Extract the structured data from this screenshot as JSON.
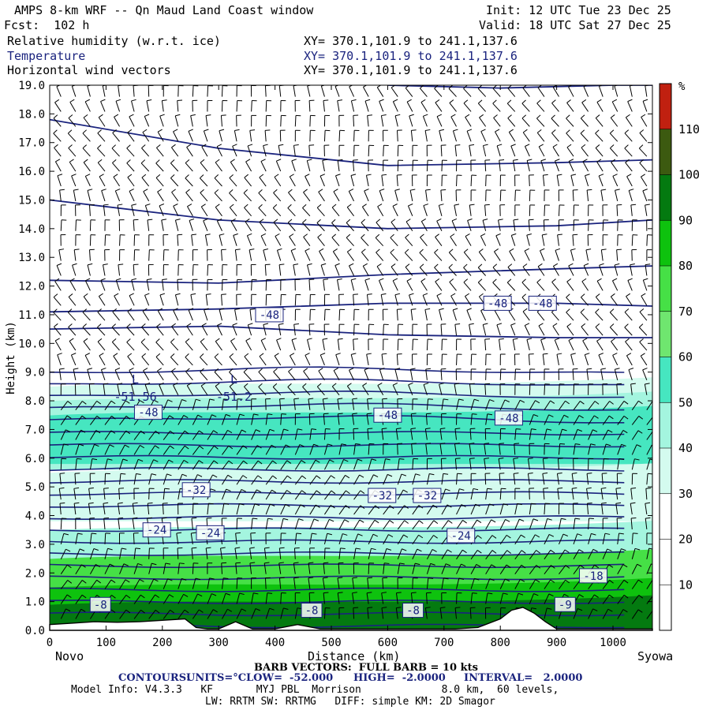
{
  "header": {
    "title": "AMPS 8-km WRF -- Qn Maud Land Coast window",
    "init": "Init: 12 UTC Tue 23 Dec 25",
    "fcst": "Fcst:  102 h",
    "valid": "Valid: 18 UTC Sat 27 Dec 25",
    "fields": [
      {
        "name": "Relative humidity (w.r.t. ice)",
        "xy": "XY= 370.1,101.9 to 241.1,137.6",
        "color": "#000000"
      },
      {
        "name": "Temperature",
        "xy": "XY= 370.1,101.9 to 241.1,137.6",
        "color": "#1a237e"
      },
      {
        "name": "Horizontal wind vectors",
        "xy": "XY= 370.1,101.9 to 241.1,137.6",
        "color": "#000000"
      }
    ]
  },
  "chart_data": {
    "type": "cross-section",
    "xlabel": "Distance (km)",
    "ylabel": "Height (km)",
    "xlim": [
      0,
      1070
    ],
    "ylim": [
      0,
      19
    ],
    "x_ticks": [
      0,
      100,
      200,
      300,
      400,
      500,
      600,
      700,
      800,
      900,
      1000
    ],
    "x_tick_labels": [
      "0",
      "100",
      "200",
      "300",
      "400",
      "500",
      "600",
      "700",
      "800",
      "900",
      "1000"
    ],
    "y_ticks": [
      0,
      1,
      2,
      3,
      4,
      5,
      6,
      7,
      8,
      9,
      10,
      11,
      12,
      13,
      14,
      15,
      16,
      17,
      18,
      19
    ],
    "y_tick_labels": [
      "0.0",
      "1.0",
      "2.0",
      "3.0",
      "4.0",
      "5.0",
      "6.0",
      "7.0",
      "8.0",
      "9.0",
      "10.0",
      "11.0",
      "12.0",
      "13.0",
      "14.0",
      "15.0",
      "16.0",
      "17.0",
      "18.0",
      "19.0"
    ],
    "endpoints": {
      "left": "Novo",
      "right": "Syowa"
    },
    "colorbar": {
      "unit": "%",
      "labels": [
        "10",
        "20",
        "30",
        "40",
        "50",
        "60",
        "70",
        "80",
        "90",
        "100",
        "110"
      ],
      "label_values": [
        10,
        20,
        30,
        40,
        50,
        60,
        70,
        80,
        90,
        100,
        110
      ],
      "range": [
        0,
        120
      ],
      "bins": [
        {
          "from": 0,
          "to": 30,
          "color": "#ffffff"
        },
        {
          "from": 30,
          "to": 40,
          "color": "#d4fbef"
        },
        {
          "from": 40,
          "to": 50,
          "color": "#a4f5df"
        },
        {
          "from": 50,
          "to": 60,
          "color": "#46e6c0"
        },
        {
          "from": 60,
          "to": 70,
          "color": "#6fe66f"
        },
        {
          "from": 70,
          "to": 80,
          "color": "#46e046"
        },
        {
          "from": 80,
          "to": 90,
          "color": "#0ec20e"
        },
        {
          "from": 90,
          "to": 100,
          "color": "#047a10"
        },
        {
          "from": 100,
          "to": 110,
          "color": "#3c5a10"
        },
        {
          "from": 110,
          "to": 120,
          "color": "#c02010"
        }
      ]
    },
    "rh_layers": [
      {
        "ytop": 8.6,
        "ybot": 7.0,
        "rh": 35
      },
      {
        "ytop": 8.1,
        "ybot": 5.6,
        "rh": 45
      },
      {
        "ytop": 7.6,
        "ybot": 5.8,
        "rh": 55
      },
      {
        "ytop": 5.6,
        "ybot": 3.8,
        "rh": 35
      },
      {
        "ytop": 3.6,
        "ybot": 2.0,
        "rh": 45
      },
      {
        "ytop": 2.6,
        "ybot": 0.0,
        "rh": 75
      },
      {
        "ytop": 1.6,
        "ybot": 0.0,
        "rh": 85
      },
      {
        "ytop": 1.0,
        "ybot": 0.0,
        "rh": 95
      }
    ],
    "temperature": {
      "contour_unit": "°C",
      "low": -52.0,
      "high": -2.0,
      "interval": 2.0,
      "lowest_contour_height_km": 0.15,
      "spacing_below_9km": 0.42,
      "upper_contours_km": [
        {
          "x": [
            0,
            300,
            600,
            900,
            1070
          ],
          "y": [
            10.5,
            10.6,
            10.3,
            10.2,
            10.2
          ]
        },
        {
          "x": [
            0,
            300,
            600,
            900,
            1070
          ],
          "y": [
            11.1,
            11.2,
            11.4,
            11.4,
            11.3
          ]
        },
        {
          "x": [
            0,
            300,
            600,
            900,
            1070
          ],
          "y": [
            12.2,
            12.1,
            12.4,
            12.6,
            12.7
          ]
        },
        {
          "x": [
            0,
            300,
            600,
            900,
            1070
          ],
          "y": [
            15.0,
            14.3,
            14.0,
            14.1,
            14.3
          ]
        },
        {
          "x": [
            0,
            300,
            600,
            900,
            1070
          ],
          "y": [
            17.8,
            16.8,
            16.2,
            16.3,
            16.4
          ]
        },
        {
          "x": [
            600,
            800,
            1000,
            1070
          ],
          "y": [
            19.0,
            18.9,
            19.0,
            19.0
          ]
        }
      ],
      "labels": [
        {
          "text": "-48",
          "x": 390,
          "y": 11.0
        },
        {
          "text": "-48",
          "x": 795,
          "y": 11.4
        },
        {
          "text": "-48",
          "x": 875,
          "y": 11.4
        },
        {
          "text": "-48",
          "x": 175,
          "y": 7.6
        },
        {
          "text": "-48",
          "x": 600,
          "y": 7.5
        },
        {
          "text": "-48",
          "x": 815,
          "y": 7.4
        },
        {
          "text": "-32",
          "x": 260,
          "y": 4.9
        },
        {
          "text": "-32",
          "x": 590,
          "y": 4.7
        },
        {
          "text": "-32",
          "x": 670,
          "y": 4.7
        },
        {
          "text": "-24",
          "x": 190,
          "y": 3.5
        },
        {
          "text": "-24",
          "x": 285,
          "y": 3.4
        },
        {
          "text": "-24",
          "x": 730,
          "y": 3.3
        },
        {
          "text": "-18",
          "x": 965,
          "y": 1.9
        },
        {
          "text": "-8",
          "x": 90,
          "y": 0.9
        },
        {
          "text": "-8",
          "x": 465,
          "y": 0.7
        },
        {
          "text": "-8",
          "x": 645,
          "y": 0.7
        },
        {
          "text": "-9",
          "x": 915,
          "y": 0.9
        }
      ],
      "extrema": [
        {
          "mark": "L",
          "value": "-51.56",
          "x": 110,
          "y": 8.6
        },
        {
          "mark": "L",
          "value": "-51.2",
          "x": 285,
          "y": 8.6
        }
      ]
    },
    "terrain_km": {
      "x": [
        0,
        40,
        80,
        120,
        160,
        200,
        240,
        260,
        280,
        300,
        330,
        360,
        400,
        440,
        480,
        520,
        560,
        600,
        640,
        680,
        720,
        760,
        800,
        820,
        840,
        860,
        880,
        900,
        920,
        960,
        1000,
        1070
      ],
      "y": [
        0.2,
        0.25,
        0.3,
        0.28,
        0.3,
        0.35,
        0.4,
        0.1,
        0.05,
        0.05,
        0.3,
        0.05,
        0.05,
        0.2,
        0.05,
        0.05,
        0.05,
        0.05,
        0.05,
        0.05,
        0.05,
        0.1,
        0.4,
        0.7,
        0.8,
        0.6,
        0.3,
        0.05,
        0.05,
        0.05,
        0.05,
        0.05
      ]
    },
    "wind_barbs": {
      "x_spacing_km": 26,
      "y_spacing_km": 0.52
    }
  },
  "footer": {
    "barb": "BARB VECTORS:  FULL BARB = 10 kts",
    "contours_label": "CONTOURS:",
    "units": "UNITS=°C",
    "low": "LOW=  -52.000",
    "high": "HIGH=  -2.0000",
    "interval": "INTERVAL=   2.0000",
    "model_line1": "Model Info: V4.3.3   KF       MYJ PBL  Morrison             8.0 km,  60 levels,",
    "model_line2": "LW: RRTM SW: RRTMG   DIFF: simple KM: 2D Smagor"
  }
}
